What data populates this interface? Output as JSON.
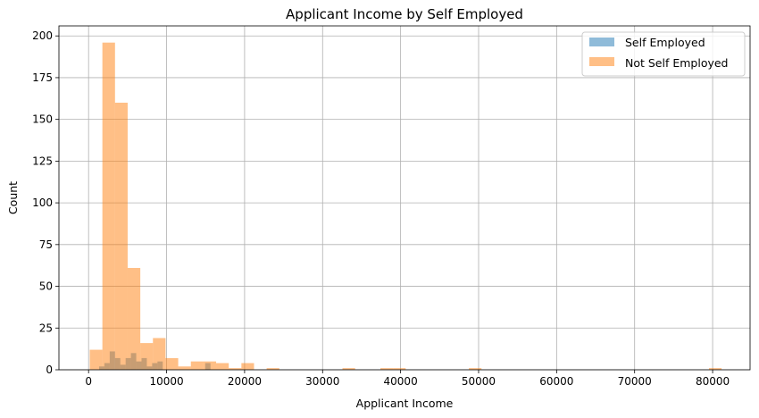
{
  "chart_data": {
    "type": "bar",
    "title": "Applicant Income by Self Employed",
    "xlabel": "Applicant Income",
    "ylabel": "Count",
    "xlim": [
      -3800,
      84800
    ],
    "ylim": [
      0,
      206
    ],
    "xticks": [
      0,
      10000,
      20000,
      30000,
      40000,
      50000,
      60000,
      70000,
      80000
    ],
    "xtick_labels": [
      "0",
      "10000",
      "20000",
      "30000",
      "40000",
      "50000",
      "60000",
      "70000",
      "80000"
    ],
    "yticks": [
      0,
      25,
      50,
      75,
      100,
      125,
      150,
      175,
      200
    ],
    "ytick_labels": [
      "0",
      "25",
      "50",
      "75",
      "100",
      "125",
      "150",
      "175",
      "200"
    ],
    "grid": true,
    "legend": "top-right",
    "series": [
      {
        "name": "Self Employed",
        "color": "#1f77b4",
        "opacity": 0.5,
        "bin_start": 670,
        "bin_width": 680,
        "counts": [
          0,
          2,
          4,
          11,
          7,
          3,
          7,
          10,
          5,
          7,
          2,
          4,
          5,
          0,
          0,
          0,
          0,
          0,
          0,
          0,
          0,
          4,
          0,
          0,
          0,
          0,
          0,
          0,
          0,
          0,
          0,
          0,
          0,
          0,
          0,
          0,
          0,
          0,
          0,
          0,
          0,
          0,
          0,
          0,
          0,
          0,
          0,
          0,
          0,
          0
        ]
      },
      {
        "name": "Not Self Employed",
        "color": "#ff7f0e",
        "opacity": 0.5,
        "bin_start": 150,
        "bin_width": 1620,
        "counts": [
          12,
          196,
          160,
          61,
          16,
          19,
          7,
          2,
          5,
          5,
          4,
          1,
          4,
          0,
          1,
          0,
          0,
          0,
          0,
          0,
          1,
          0,
          0,
          1,
          1,
          0,
          0,
          0,
          0,
          0,
          1,
          0,
          0,
          0,
          0,
          0,
          0,
          0,
          0,
          0,
          0,
          0,
          0,
          0,
          0,
          0,
          0,
          0,
          0,
          1
        ]
      }
    ]
  }
}
